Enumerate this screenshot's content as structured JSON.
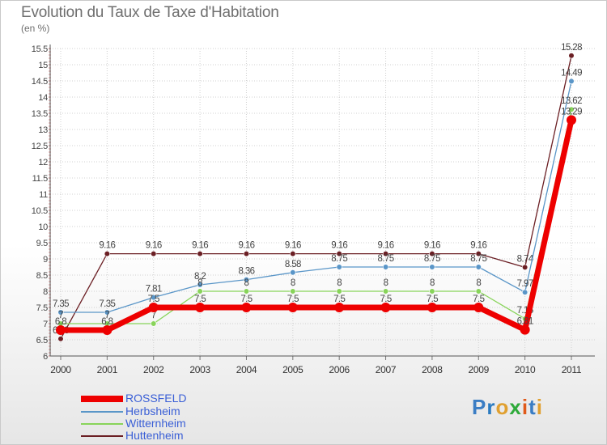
{
  "title": "Evolution du Taux de Taxe d'Habitation",
  "subtitle": "(en %)",
  "logo": [
    "P",
    "r",
    "o",
    "x",
    "i",
    "t",
    "i"
  ],
  "logo_colors": [
    "#3a7dc4",
    "#2b7bc0",
    "#e0a030",
    "#2eaa3a",
    "#e05a1a",
    "#3a7dc4",
    "#e0a030"
  ],
  "chart_data": {
    "type": "line",
    "title": "Evolution du Taux de Taxe d'Habitation",
    "ylabel": "(en %)",
    "xlabel": "",
    "ylim": [
      6,
      15.5
    ],
    "yticks": [
      "6",
      "6.5",
      "7",
      "7.5",
      "8",
      "8.5",
      "9",
      "9.5",
      "10",
      "10.5",
      "11",
      "11.5",
      "12",
      "12.5",
      "13",
      "13.5",
      "14",
      "14.5",
      "15",
      "15.5"
    ],
    "x": [
      "2000",
      "2001",
      "2002",
      "2003",
      "2004",
      "2005",
      "2006",
      "2007",
      "2008",
      "2009",
      "2010",
      "2011"
    ],
    "series": [
      {
        "name": "Huttenheim",
        "color": "#6b1f24",
        "values": [
          6.53,
          9.16,
          9.16,
          9.16,
          9.16,
          9.16,
          9.16,
          9.16,
          9.16,
          9.16,
          8.74,
          15.28
        ],
        "labels": [
          "6.53",
          "9.16",
          "9.16",
          "9.16",
          "9.16",
          "9.16",
          "9.16",
          "9.16",
          "9.16",
          "9.16",
          "8.74",
          "15.28"
        ]
      },
      {
        "name": "Herbsheim",
        "color": "#5a96c8",
        "values": [
          7.35,
          7.35,
          7.81,
          8.2,
          8.36,
          8.58,
          8.75,
          8.75,
          8.75,
          8.75,
          7.97,
          14.49
        ],
        "labels": [
          "7.35",
          "7.35",
          "7.81",
          "8.2",
          "8.36",
          "8.58",
          "8.75",
          "8.75",
          "8.75",
          "8.75",
          "7.97",
          "14.49"
        ]
      },
      {
        "name": "Witternheim",
        "color": "#88d45a",
        "values": [
          7.0,
          7.0,
          7.0,
          8.0,
          8.0,
          8.0,
          8.0,
          8.0,
          8.0,
          8.0,
          7.15,
          13.62
        ],
        "labels": [
          "7",
          "7",
          "7",
          "8",
          "8",
          "8",
          "8",
          "8",
          "8",
          "8",
          "7.15",
          "13.62"
        ]
      },
      {
        "name": "ROSSFELD",
        "color": "#ee0000",
        "values": [
          6.8,
          6.8,
          7.5,
          7.5,
          7.5,
          7.5,
          7.5,
          7.5,
          7.5,
          7.5,
          6.81,
          13.29
        ],
        "labels": [
          "6.8",
          "6.8",
          "7.5",
          "7.5",
          "7.5",
          "7.5",
          "7.5",
          "7.5",
          "7.5",
          "7.5",
          "6.81",
          "13.29"
        ]
      }
    ],
    "legend": [
      {
        "name": "ROSSFELD",
        "color": "#ee0000",
        "label_color": "#3a5fd6"
      },
      {
        "name": "Herbsheim",
        "color": "#5a96c8",
        "label_color": "#3a5fd6"
      },
      {
        "name": "Witternheim",
        "color": "#88d45a",
        "label_color": "#3a5fd6"
      },
      {
        "name": "Huttenheim",
        "color": "#6b1f24",
        "label_color": "#3a5fd6"
      }
    ]
  }
}
